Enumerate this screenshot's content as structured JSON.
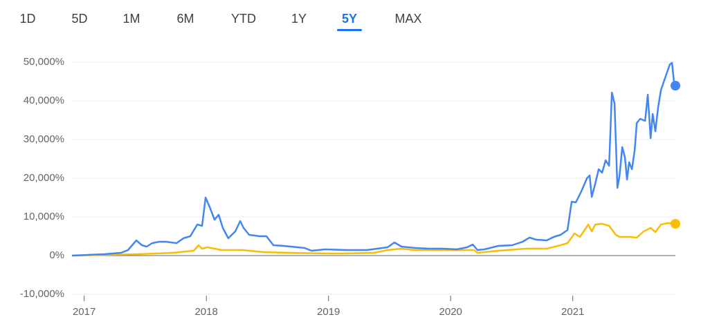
{
  "tabs": {
    "labels": [
      "1D",
      "5D",
      "1M",
      "6M",
      "YTD",
      "1Y",
      "5Y",
      "MAX"
    ],
    "selected": 6
  },
  "chart_data": {
    "type": "line",
    "xlim": [
      2016.9,
      2021.84
    ],
    "xticks": [
      2017,
      2018,
      2019,
      2020,
      2021
    ],
    "ylim": [
      -10000,
      50000
    ],
    "yticks": [
      {
        "value": -10000,
        "label": "-10,000%"
      },
      {
        "value": 0,
        "label": "0%"
      },
      {
        "value": 10000,
        "label": "10,000%"
      },
      {
        "value": 20000,
        "label": "20,000%"
      },
      {
        "value": 30000,
        "label": "30,000%"
      },
      {
        "value": 40000,
        "label": "40,000%"
      },
      {
        "value": 50000,
        "label": "50,000%"
      }
    ],
    "grid": true,
    "series": [
      {
        "color": "#4285f4",
        "x": [
          2016.9,
          2017.161,
          2017.302,
          2017.359,
          2017.427,
          2017.472,
          2017.512,
          2017.557,
          2017.614,
          2017.671,
          2017.756,
          2017.812,
          2017.869,
          2017.926,
          2017.965,
          2017.994,
          2018.028,
          2018.067,
          2018.101,
          2018.135,
          2018.18,
          2018.237,
          2018.277,
          2018.305,
          2018.35,
          2018.435,
          2018.492,
          2018.549,
          2018.634,
          2018.804,
          2018.86,
          2018.974,
          2019.144,
          2019.314,
          2019.484,
          2019.54,
          2019.597,
          2019.71,
          2019.824,
          2019.937,
          2020.05,
          2020.135,
          2020.181,
          2020.22,
          2020.277,
          2020.39,
          2020.504,
          2020.589,
          2020.645,
          2020.702,
          2020.787,
          2020.844,
          2020.9,
          2020.957,
          2020.991,
          2021.025,
          2021.07,
          2021.116,
          2021.138,
          2021.155,
          2021.184,
          2021.212,
          2021.24,
          2021.269,
          2021.297,
          2021.32,
          2021.342,
          2021.365,
          2021.382,
          2021.405,
          2021.427,
          2021.444,
          2021.461,
          2021.484,
          2021.507,
          2021.524,
          2021.552,
          2021.592,
          2021.614,
          2021.637,
          2021.654,
          2021.676,
          2021.699,
          2021.722,
          2021.761,
          2021.795,
          2021.812,
          2021.829,
          2021.84
        ],
        "values": [
          0,
          360,
          710,
          1430,
          3930,
          2680,
          2320,
          3210,
          3570,
          3570,
          3210,
          4460,
          5000,
          8040,
          7680,
          15000,
          12500,
          9290,
          10540,
          7140,
          4460,
          6250,
          8930,
          7140,
          5360,
          5000,
          5000,
          2680,
          2500,
          1960,
          1250,
          1610,
          1430,
          1430,
          2140,
          3390,
          2320,
          1960,
          1790,
          1790,
          1610,
          2140,
          2860,
          1430,
          1610,
          2500,
          2680,
          3570,
          4640,
          4110,
          3930,
          4820,
          5360,
          6610,
          13930,
          13750,
          16610,
          20000,
          20720,
          15180,
          18570,
          22320,
          21430,
          24640,
          23220,
          42150,
          39290,
          17500,
          20540,
          28040,
          25360,
          19640,
          24110,
          22320,
          27320,
          34290,
          35360,
          34820,
          41610,
          30360,
          36610,
          32140,
          38400,
          42860,
          46430,
          49460,
          49820,
          44640,
          43930
        ]
      },
      {
        "color": "#fbbc04",
        "x": [
          2016.9,
          2017.444,
          2017.727,
          2017.897,
          2017.937,
          2017.965,
          2018.011,
          2018.124,
          2018.294,
          2018.464,
          2018.69,
          2018.974,
          2019.144,
          2019.37,
          2019.484,
          2019.597,
          2019.71,
          2019.937,
          2020.05,
          2020.192,
          2020.22,
          2020.39,
          2020.617,
          2020.787,
          2020.9,
          2020.957,
          2021.014,
          2021.059,
          2021.127,
          2021.155,
          2021.184,
          2021.24,
          2021.297,
          2021.353,
          2021.382,
          2021.467,
          2021.524,
          2021.58,
          2021.637,
          2021.676,
          2021.722,
          2021.778,
          2021.84
        ],
        "values": [
          0,
          360,
          710,
          1250,
          2680,
          1790,
          2140,
          1430,
          1430,
          890,
          710,
          540,
          540,
          710,
          1430,
          1790,
          1430,
          1430,
          1430,
          1430,
          710,
          1250,
          1790,
          1790,
          2680,
          3210,
          5710,
          4820,
          8040,
          6250,
          8040,
          8210,
          7680,
          5360,
          4820,
          4820,
          4640,
          6250,
          7140,
          6070,
          8040,
          8390,
          8210
        ]
      }
    ]
  }
}
